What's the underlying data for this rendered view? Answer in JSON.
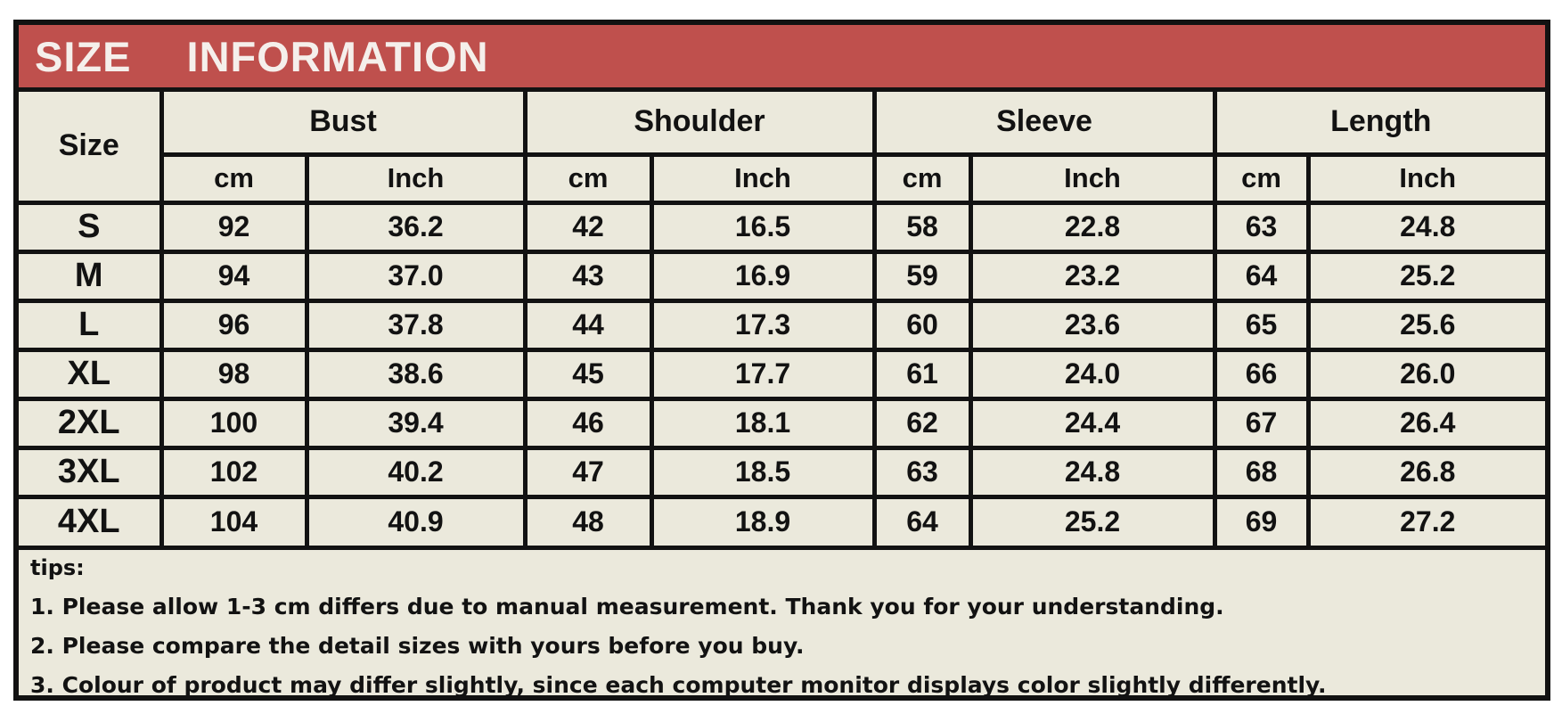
{
  "title": "SIZE INFORMATION",
  "table": {
    "size_label": "Size",
    "groups": [
      {
        "label": "Bust"
      },
      {
        "label": "Shoulder"
      },
      {
        "label": "Sleeve"
      },
      {
        "label": "Length"
      }
    ],
    "units": {
      "cm": "cm",
      "inch": "Inch"
    },
    "rows": [
      {
        "size": "S",
        "bust_cm": "92",
        "bust_inch": "36.2",
        "shoulder_cm": "42",
        "shoulder_inch": "16.5",
        "sleeve_cm": "58",
        "sleeve_inch": "22.8",
        "length_cm": "63",
        "length_inch": "24.8"
      },
      {
        "size": "M",
        "bust_cm": "94",
        "bust_inch": "37.0",
        "shoulder_cm": "43",
        "shoulder_inch": "16.9",
        "sleeve_cm": "59",
        "sleeve_inch": "23.2",
        "length_cm": "64",
        "length_inch": "25.2"
      },
      {
        "size": "L",
        "bust_cm": "96",
        "bust_inch": "37.8",
        "shoulder_cm": "44",
        "shoulder_inch": "17.3",
        "sleeve_cm": "60",
        "sleeve_inch": "23.6",
        "length_cm": "65",
        "length_inch": "25.6"
      },
      {
        "size": "XL",
        "bust_cm": "98",
        "bust_inch": "38.6",
        "shoulder_cm": "45",
        "shoulder_inch": "17.7",
        "sleeve_cm": "61",
        "sleeve_inch": "24.0",
        "length_cm": "66",
        "length_inch": "26.0"
      },
      {
        "size": "2XL",
        "bust_cm": "100",
        "bust_inch": "39.4",
        "shoulder_cm": "46",
        "shoulder_inch": "18.1",
        "sleeve_cm": "62",
        "sleeve_inch": "24.4",
        "length_cm": "67",
        "length_inch": "26.4"
      },
      {
        "size": "3XL",
        "bust_cm": "102",
        "bust_inch": "40.2",
        "shoulder_cm": "47",
        "shoulder_inch": "18.5",
        "sleeve_cm": "63",
        "sleeve_inch": "24.8",
        "length_cm": "68",
        "length_inch": "26.8"
      },
      {
        "size": "4XL",
        "bust_cm": "104",
        "bust_inch": "40.9",
        "shoulder_cm": "48",
        "shoulder_inch": "18.9",
        "sleeve_cm": "64",
        "sleeve_inch": "25.2",
        "length_cm": "69",
        "length_inch": "27.2"
      }
    ]
  },
  "tips": {
    "heading": "tips:",
    "items": [
      "1. Please allow 1-3 cm differs due to manual measurement. Thank you for your understanding.",
      "2. Please compare the detail sizes with yours before you buy.",
      "3. Colour of product may differ slightly, since each computer monitor displays color slightly differently."
    ]
  },
  "colors": {
    "header_bg": "#bf504d",
    "header_text": "#f5efeb",
    "table_bg": "#ebe9dc",
    "border": "#121212",
    "text": "#121212"
  },
  "chart_data": {
    "type": "table",
    "title": "SIZE INFORMATION",
    "columns": [
      "Size",
      "Bust cm",
      "Bust Inch",
      "Shoulder cm",
      "Shoulder Inch",
      "Sleeve cm",
      "Sleeve Inch",
      "Length cm",
      "Length Inch"
    ],
    "rows": [
      [
        "S",
        92,
        36.2,
        42,
        16.5,
        58,
        22.8,
        63,
        24.8
      ],
      [
        "M",
        94,
        37.0,
        43,
        16.9,
        59,
        23.2,
        64,
        25.2
      ],
      [
        "L",
        96,
        37.8,
        44,
        17.3,
        60,
        23.6,
        65,
        25.6
      ],
      [
        "XL",
        98,
        38.6,
        45,
        17.7,
        61,
        24.0,
        66,
        26.0
      ],
      [
        "2XL",
        100,
        39.4,
        46,
        18.1,
        62,
        24.4,
        67,
        26.4
      ],
      [
        "3XL",
        102,
        40.2,
        47,
        18.5,
        63,
        24.8,
        68,
        26.8
      ],
      [
        "4XL",
        104,
        40.9,
        48,
        18.9,
        64,
        25.2,
        69,
        27.2
      ]
    ]
  }
}
